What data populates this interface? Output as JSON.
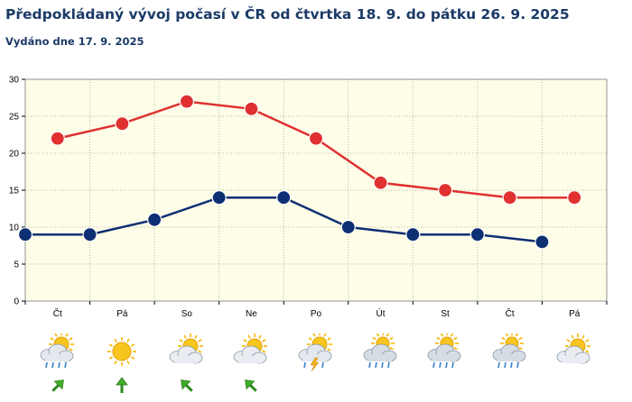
{
  "header": {
    "title": "Předpokládaný vývoj počasí v ČR od čtvrtka 18. 9. do pátku 26. 9. 2025",
    "subtitle": "Vydáno dne 17. 9. 2025"
  },
  "chart_data": {
    "type": "line",
    "categories": [
      "Čt",
      "Pá",
      "So",
      "Ne",
      "Po",
      "Út",
      "St",
      "Čt",
      "Pá"
    ],
    "x": [
      0,
      0.5,
      1,
      1.5,
      2,
      2.5,
      3,
      3.5,
      4,
      4.5,
      5,
      5.5,
      6,
      6.5,
      7,
      7.5,
      8,
      8.5
    ],
    "ylim": [
      0,
      30
    ],
    "yticks": [
      0,
      5,
      10,
      15,
      20,
      25,
      30
    ],
    "grid": true,
    "series": [
      {
        "values": [
          null,
          22,
          24,
          27,
          26,
          22,
          16,
          15,
          14,
          14
        ],
        "x": [
          0,
          0.5,
          1.5,
          2.5,
          3.5,
          4.5,
          5.5,
          6.5,
          7.5,
          8.5
        ],
        "color": "#e03030"
      },
      {
        "values": [
          9,
          9,
          11,
          14,
          14,
          10,
          9,
          9,
          8
        ],
        "x": [
          0,
          1,
          2,
          3,
          4,
          5,
          6,
          7,
          8
        ],
        "color": "#0d2f73"
      }
    ],
    "weather_icons": [
      "partly-cloudy-rain",
      "sunny",
      "partly-cloudy",
      "partly-cloudy",
      "partly-cloudy-storm",
      "cloudy-rain",
      "cloudy-rain",
      "cloudy-rain",
      "partly-cloudy"
    ],
    "wind_arrows": [
      "northeast",
      "north",
      "northwest",
      "northwest"
    ]
  }
}
